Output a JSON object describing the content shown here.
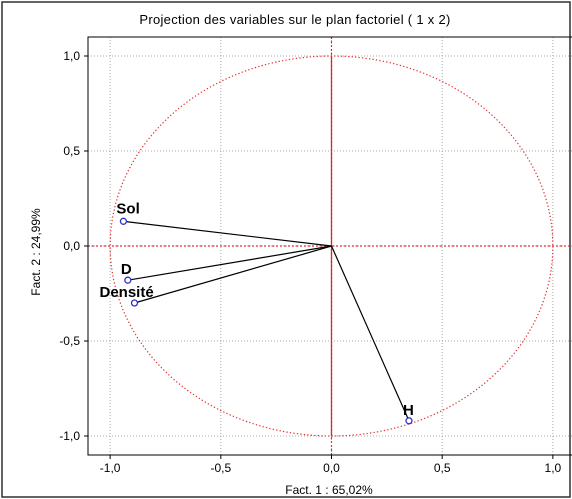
{
  "chart_data": {
    "type": "scatter",
    "title": "Projection des variables sur le plan factoriel  ( 1 x  2)",
    "xlabel": "Fact. 1  : 65,02%",
    "ylabel": "Fact. 2  : 24,99%",
    "xlim": [
      -1.1,
      1.1
    ],
    "ylim": [
      -1.1,
      1.1
    ],
    "xticks": [
      -1.0,
      -0.5,
      0.0,
      0.5,
      1.0
    ],
    "xtick_labels": [
      "-1,0",
      "-0,5",
      "0,0",
      "0,5",
      "1,0"
    ],
    "yticks": [
      1.0,
      0.5,
      0.0,
      -0.5,
      -1.0
    ],
    "ytick_labels": [
      "1,0",
      "0,5",
      "0,0",
      "-0,5",
      "-1,0"
    ],
    "grid": true,
    "correlation_circle": {
      "radius": 1.0,
      "color": "#e0302e"
    },
    "points": [
      {
        "label": "Sol",
        "x": -0.94,
        "y": 0.13
      },
      {
        "label": "D",
        "x": -0.92,
        "y": -0.18
      },
      {
        "label": "Densité",
        "x": -0.89,
        "y": -0.3
      },
      {
        "label": "H",
        "x": 0.35,
        "y": -0.92
      }
    ],
    "vector_origin": [
      0,
      0
    ]
  }
}
